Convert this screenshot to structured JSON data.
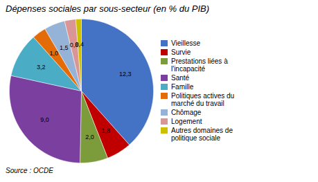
{
  "chart_data": {
    "type": "pie",
    "title": "Dépenses sociales par sous-secteur (en % du PIB)",
    "source": "Source : OCDE",
    "categories": [
      "Vieillesse",
      "Survie",
      "Prestations liées à\nl'incapacité",
      "Santé",
      "Famille",
      "Politiques actives du\nmarché du travail",
      "Chômage",
      "Logement",
      "Autres domaines de\npolitique sociale"
    ],
    "values": [
      12.3,
      1.8,
      2.0,
      9.0,
      3.2,
      1.0,
      1.5,
      0.8,
      0.4
    ],
    "value_labels": [
      "12,3",
      "1,8",
      "2,0",
      "9,0",
      "3,2",
      "1,0",
      "1,5",
      "0,8",
      "0,4"
    ],
    "colors": [
      "#4472C4",
      "#C00000",
      "#7C9C3C",
      "#7B3FA0",
      "#4BACC6",
      "#E36C09",
      "#95B3D7",
      "#D99694",
      "#CCC000"
    ],
    "data_labels": true,
    "legend": "right"
  }
}
